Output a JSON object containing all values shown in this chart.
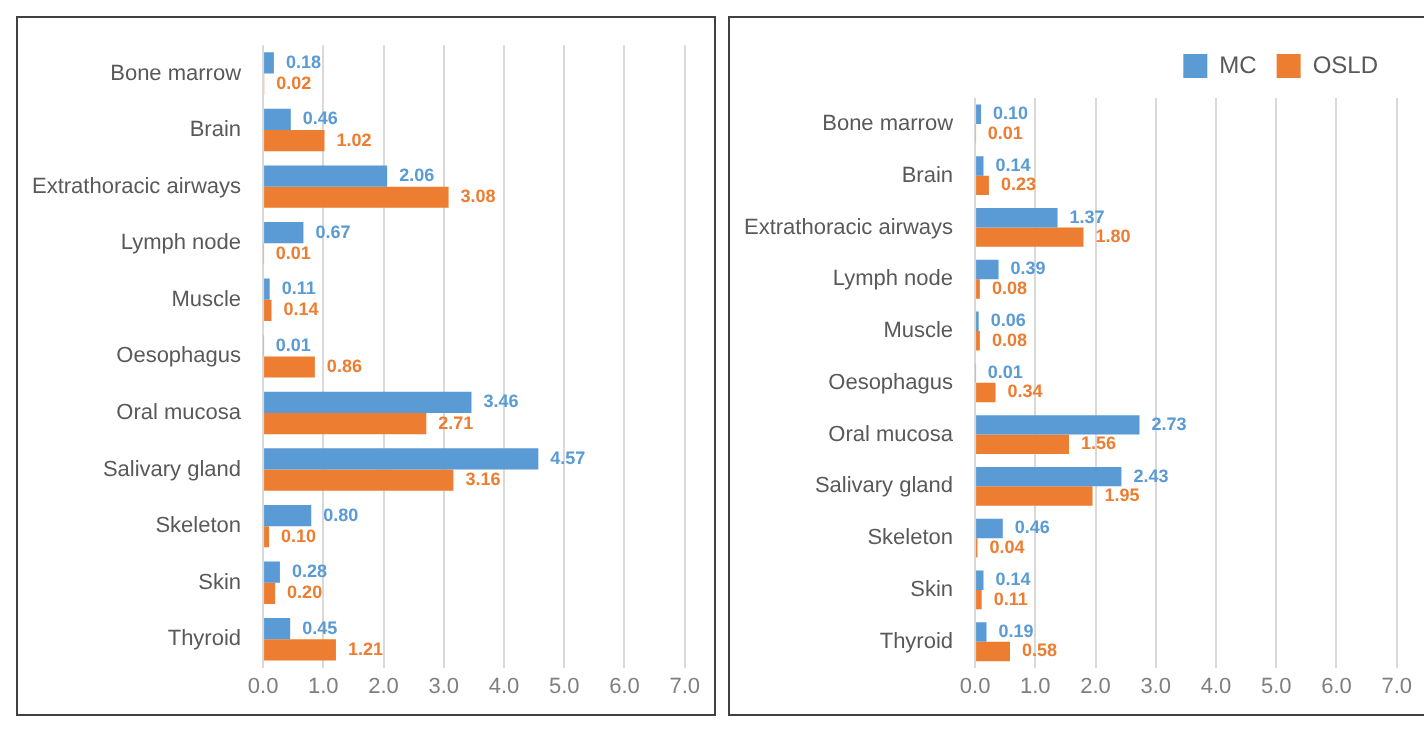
{
  "chart_data": [
    {
      "type": "bar",
      "orientation": "horizontal",
      "categories": [
        "Bone marrow",
        "Brain",
        "Extrathoracic airways",
        "Lymph node",
        "Muscle",
        "Oesophagus",
        "Oral mucosa",
        "Salivary gland",
        "Skeleton",
        "Skin",
        "Thyroid"
      ],
      "series": [
        {
          "color": "#5b9bd5",
          "values": [
            0.18,
            0.46,
            2.06,
            0.67,
            0.11,
            0.01,
            3.46,
            4.57,
            0.8,
            0.28,
            0.45
          ],
          "value_labels": [
            "0.18",
            "0.46",
            "2.06",
            "0.67",
            "0.11",
            "0.01",
            "3.46",
            "4.57",
            "0.80",
            "0.28",
            "0.45"
          ]
        },
        {
          "color": "#ed7d31",
          "values": [
            0.02,
            1.02,
            3.08,
            0.01,
            0.14,
            0.86,
            2.71,
            3.16,
            0.1,
            0.2,
            1.21
          ],
          "value_labels": [
            "0.02",
            "1.02",
            "3.08",
            "0.01",
            "0.14",
            "0.86",
            "2.71",
            "3.16",
            "0.10",
            "0.20",
            "1.21"
          ]
        }
      ],
      "xlim": [
        0,
        7
      ],
      "xticks": [
        {
          "value": 0,
          "label": "0.0"
        },
        {
          "value": 1,
          "label": "1.0"
        },
        {
          "value": 2,
          "label": "2.0"
        },
        {
          "value": 3,
          "label": "3.0"
        },
        {
          "value": 4,
          "label": "4.0"
        },
        {
          "value": 5,
          "label": "5.0"
        },
        {
          "value": 6,
          "label": "6.0"
        },
        {
          "value": 7,
          "label": "7.0"
        }
      ],
      "grid": "x"
    },
    {
      "type": "bar",
      "orientation": "horizontal",
      "categories": [
        "Bone marrow",
        "Brain",
        "Extrathoracic airways",
        "Lymph node",
        "Muscle",
        "Oesophagus",
        "Oral mucosa",
        "Salivary gland",
        "Skeleton",
        "Skin",
        "Thyroid"
      ],
      "series": [
        {
          "name": "MC",
          "color": "#5b9bd5",
          "values": [
            0.1,
            0.14,
            1.37,
            0.39,
            0.06,
            0.01,
            2.73,
            2.43,
            0.46,
            0.14,
            0.19
          ],
          "value_labels": [
            "0.10",
            "0.14",
            "1.37",
            "0.39",
            "0.06",
            "0.01",
            "2.73",
            "2.43",
            "0.46",
            "0.14",
            "0.19"
          ]
        },
        {
          "name": "OSLD",
          "color": "#ed7d31",
          "values": [
            0.01,
            0.23,
            1.8,
            0.08,
            0.08,
            0.34,
            1.56,
            1.95,
            0.04,
            0.11,
            0.58
          ],
          "value_labels": [
            "0.01",
            "0.23",
            "1.80",
            "0.08",
            "0.08",
            "0.34",
            "1.56",
            "1.95",
            "0.04",
            "0.11",
            "0.58"
          ]
        }
      ],
      "xlim": [
        0,
        7
      ],
      "xticks": [
        {
          "value": 0,
          "label": "0.0"
        },
        {
          "value": 1,
          "label": "1.0"
        },
        {
          "value": 2,
          "label": "2.0"
        },
        {
          "value": 3,
          "label": "3.0"
        },
        {
          "value": 4,
          "label": "4.0"
        },
        {
          "value": 5,
          "label": "5.0"
        },
        {
          "value": 6,
          "label": "6.0"
        },
        {
          "value": 7,
          "label": "7.0"
        }
      ],
      "grid": "x",
      "legend": "top right"
    }
  ]
}
